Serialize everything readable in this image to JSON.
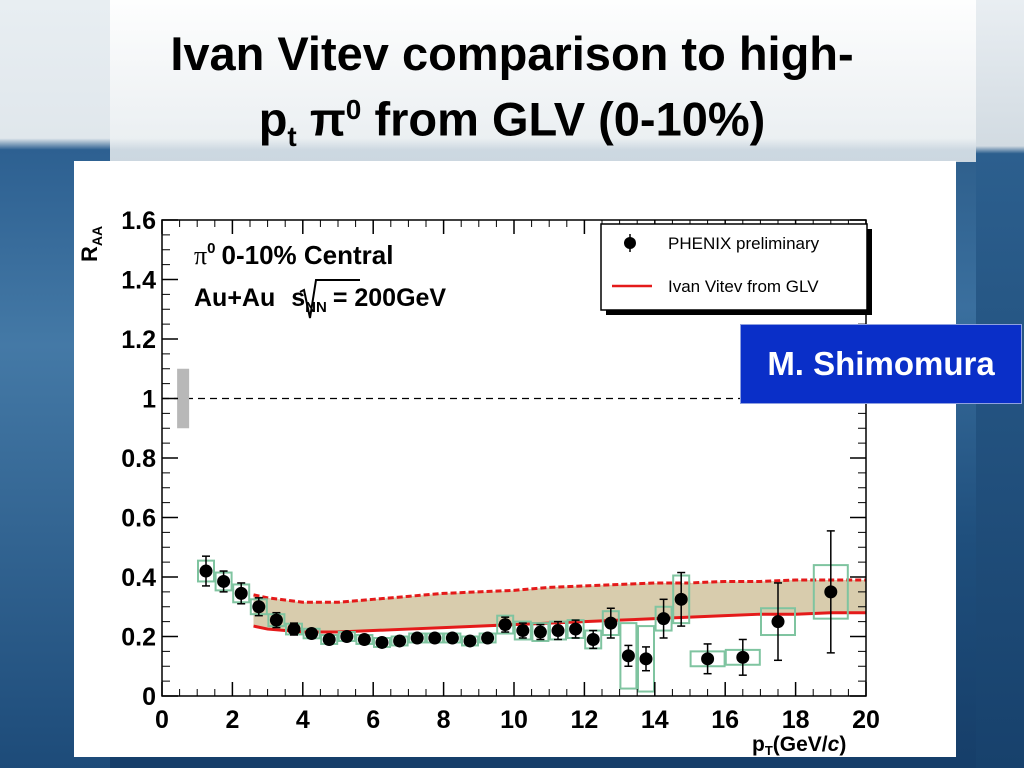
{
  "slide": {
    "title_line1": "Ivan Vitev comparison to high-",
    "title_line2_p": "p",
    "title_line2_sub": "t",
    "title_line2_pi": "π",
    "title_line2_sup": "0",
    "title_line2_rest": "from GLV (0-10%)",
    "author_box": "M. Shimomura"
  },
  "chart_data": {
    "type": "scatter",
    "ylabel_main": "R",
    "ylabel_sub": "AA",
    "xlabel_main": "p",
    "xlabel_sub": "T",
    "xlabel_rest": "(GeV/",
    "xlabel_c": "c",
    "xlabel_close": ")",
    "xlim": [
      0,
      20
    ],
    "ylim": [
      0,
      1.6
    ],
    "x_ticks": [
      0,
      2,
      4,
      6,
      8,
      10,
      12,
      14,
      16,
      18,
      20
    ],
    "y_ticks": [
      0,
      0.2,
      0.4,
      0.6,
      0.8,
      1,
      1.2,
      1.4,
      1.6
    ],
    "y_tick_labels": [
      "0",
      "0.2",
      "0.4",
      "0.6",
      "0.8",
      "1",
      "1.2",
      "1.4",
      "1.6"
    ],
    "x_tick_labels": [
      "0",
      "2",
      "4",
      "6",
      "8",
      "10",
      "12",
      "14",
      "16",
      "18",
      "20"
    ],
    "annotation_line1_pi": "π",
    "annotation_line1_sup": "0",
    "annotation_line1_rest": "0-10% Central",
    "annotation_line2_pre": "Au+Au",
    "annotation_line2_s": "s",
    "annotation_line2_sub": "NN",
    "annotation_line2_post": "= 200GeV",
    "reference_line_y": 1.0,
    "normalization_box": {
      "x": 0.6,
      "y_low": 0.9,
      "y_high": 1.1
    },
    "legend": [
      {
        "label": "PHENIX preliminary",
        "marker": "circle"
      },
      {
        "label": "Ivan Vitev from GLV",
        "marker": "line"
      }
    ],
    "legend_position": "top-right",
    "series": [
      {
        "name": "PHENIX preliminary",
        "color": "#000000",
        "points": [
          {
            "x": 1.25,
            "y": 0.42,
            "err": 0.05,
            "sys": 0.035
          },
          {
            "x": 1.75,
            "y": 0.385,
            "err": 0.035,
            "sys": 0.03
          },
          {
            "x": 2.25,
            "y": 0.345,
            "err": 0.035,
            "sys": 0.03
          },
          {
            "x": 2.75,
            "y": 0.3,
            "err": 0.03,
            "sys": 0.025
          },
          {
            "x": 3.25,
            "y": 0.255,
            "err": 0.025,
            "sys": 0.02
          },
          {
            "x": 3.75,
            "y": 0.225,
            "err": 0.02,
            "sys": 0.018
          },
          {
            "x": 4.25,
            "y": 0.21,
            "err": 0.015,
            "sys": 0.016
          },
          {
            "x": 4.75,
            "y": 0.19,
            "err": 0.015,
            "sys": 0.015
          },
          {
            "x": 5.25,
            "y": 0.2,
            "err": 0.015,
            "sys": 0.015
          },
          {
            "x": 5.75,
            "y": 0.19,
            "err": 0.015,
            "sys": 0.015
          },
          {
            "x": 6.25,
            "y": 0.18,
            "err": 0.015,
            "sys": 0.015
          },
          {
            "x": 6.75,
            "y": 0.185,
            "err": 0.015,
            "sys": 0.015
          },
          {
            "x": 7.25,
            "y": 0.195,
            "err": 0.015,
            "sys": 0.015
          },
          {
            "x": 7.75,
            "y": 0.195,
            "err": 0.015,
            "sys": 0.015
          },
          {
            "x": 8.25,
            "y": 0.195,
            "err": 0.015,
            "sys": 0.015
          },
          {
            "x": 8.75,
            "y": 0.185,
            "err": 0.015,
            "sys": 0.015
          },
          {
            "x": 9.25,
            "y": 0.195,
            "err": 0.015,
            "sys": 0.015
          },
          {
            "x": 9.75,
            "y": 0.24,
            "err": 0.025,
            "sys": 0.03
          },
          {
            "x": 10.25,
            "y": 0.22,
            "err": 0.025,
            "sys": 0.03
          },
          {
            "x": 10.75,
            "y": 0.215,
            "err": 0.025,
            "sys": 0.03
          },
          {
            "x": 11.25,
            "y": 0.22,
            "err": 0.03,
            "sys": 0.03
          },
          {
            "x": 11.75,
            "y": 0.225,
            "err": 0.03,
            "sys": 0.03
          },
          {
            "x": 12.25,
            "y": 0.19,
            "err": 0.03,
            "sys": 0.03
          },
          {
            "x": 12.75,
            "y": 0.245,
            "err": 0.05,
            "sys": 0.04
          },
          {
            "x": 13.25,
            "y": 0.135,
            "err": 0.035,
            "sys": 0.11
          },
          {
            "x": 13.75,
            "y": 0.125,
            "err": 0.04,
            "sys": 0.11
          },
          {
            "x": 14.25,
            "y": 0.26,
            "err": 0.065,
            "sys": 0.04
          },
          {
            "x": 14.75,
            "y": 0.325,
            "err": 0.09,
            "sys": 0.08
          },
          {
            "x": 15.5,
            "y": 0.125,
            "err": 0.05,
            "sys": 0.025
          },
          {
            "x": 16.5,
            "y": 0.13,
            "err": 0.06,
            "sys": 0.025
          },
          {
            "x": 17.5,
            "y": 0.25,
            "err": 0.13,
            "sys": 0.045
          },
          {
            "x": 19.0,
            "y": 0.35,
            "err": 0.205,
            "sys": 0.09
          }
        ]
      }
    ],
    "theory_band": {
      "name": "Ivan Vitev from GLV",
      "color": "#e41a1a",
      "fill": "#d8ccad",
      "x": [
        2.6,
        3.0,
        4.0,
        5.0,
        6.0,
        7.0,
        8.0,
        9.0,
        10.0,
        11.0,
        12.0,
        13.0,
        14.0,
        15.0,
        16.0,
        17.0,
        18.0,
        19.0,
        20.0
      ],
      "upper": [
        0.34,
        0.33,
        0.315,
        0.315,
        0.325,
        0.335,
        0.345,
        0.35,
        0.355,
        0.365,
        0.37,
        0.375,
        0.38,
        0.38,
        0.385,
        0.385,
        0.39,
        0.39,
        0.39
      ],
      "lower": [
        0.235,
        0.225,
        0.215,
        0.215,
        0.22,
        0.225,
        0.23,
        0.235,
        0.24,
        0.245,
        0.25,
        0.255,
        0.26,
        0.265,
        0.27,
        0.275,
        0.275,
        0.28,
        0.28
      ]
    }
  }
}
